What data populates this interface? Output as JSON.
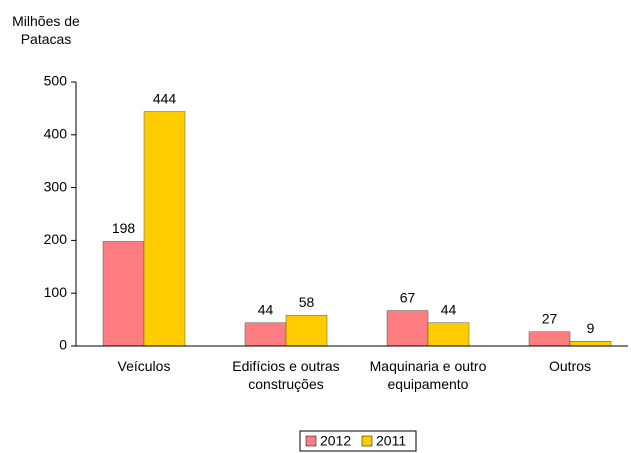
{
  "chart_data": {
    "type": "bar",
    "y_axis_label": "Milhões de Patacas",
    "categories": [
      "Veículos",
      "Edifícios e outras construções",
      "Maquinaria e outro equipamento",
      "Outros"
    ],
    "series": [
      {
        "name": "2012",
        "color": "#ff7c80",
        "values": [
          198,
          44,
          67,
          27
        ]
      },
      {
        "name": "2011",
        "color": "#ffcc00",
        "values": [
          444,
          58,
          44,
          9
        ]
      }
    ],
    "ylim": [
      0,
      500
    ],
    "yticks": [
      0,
      100,
      200,
      300,
      400,
      500
    ],
    "grid": false
  }
}
